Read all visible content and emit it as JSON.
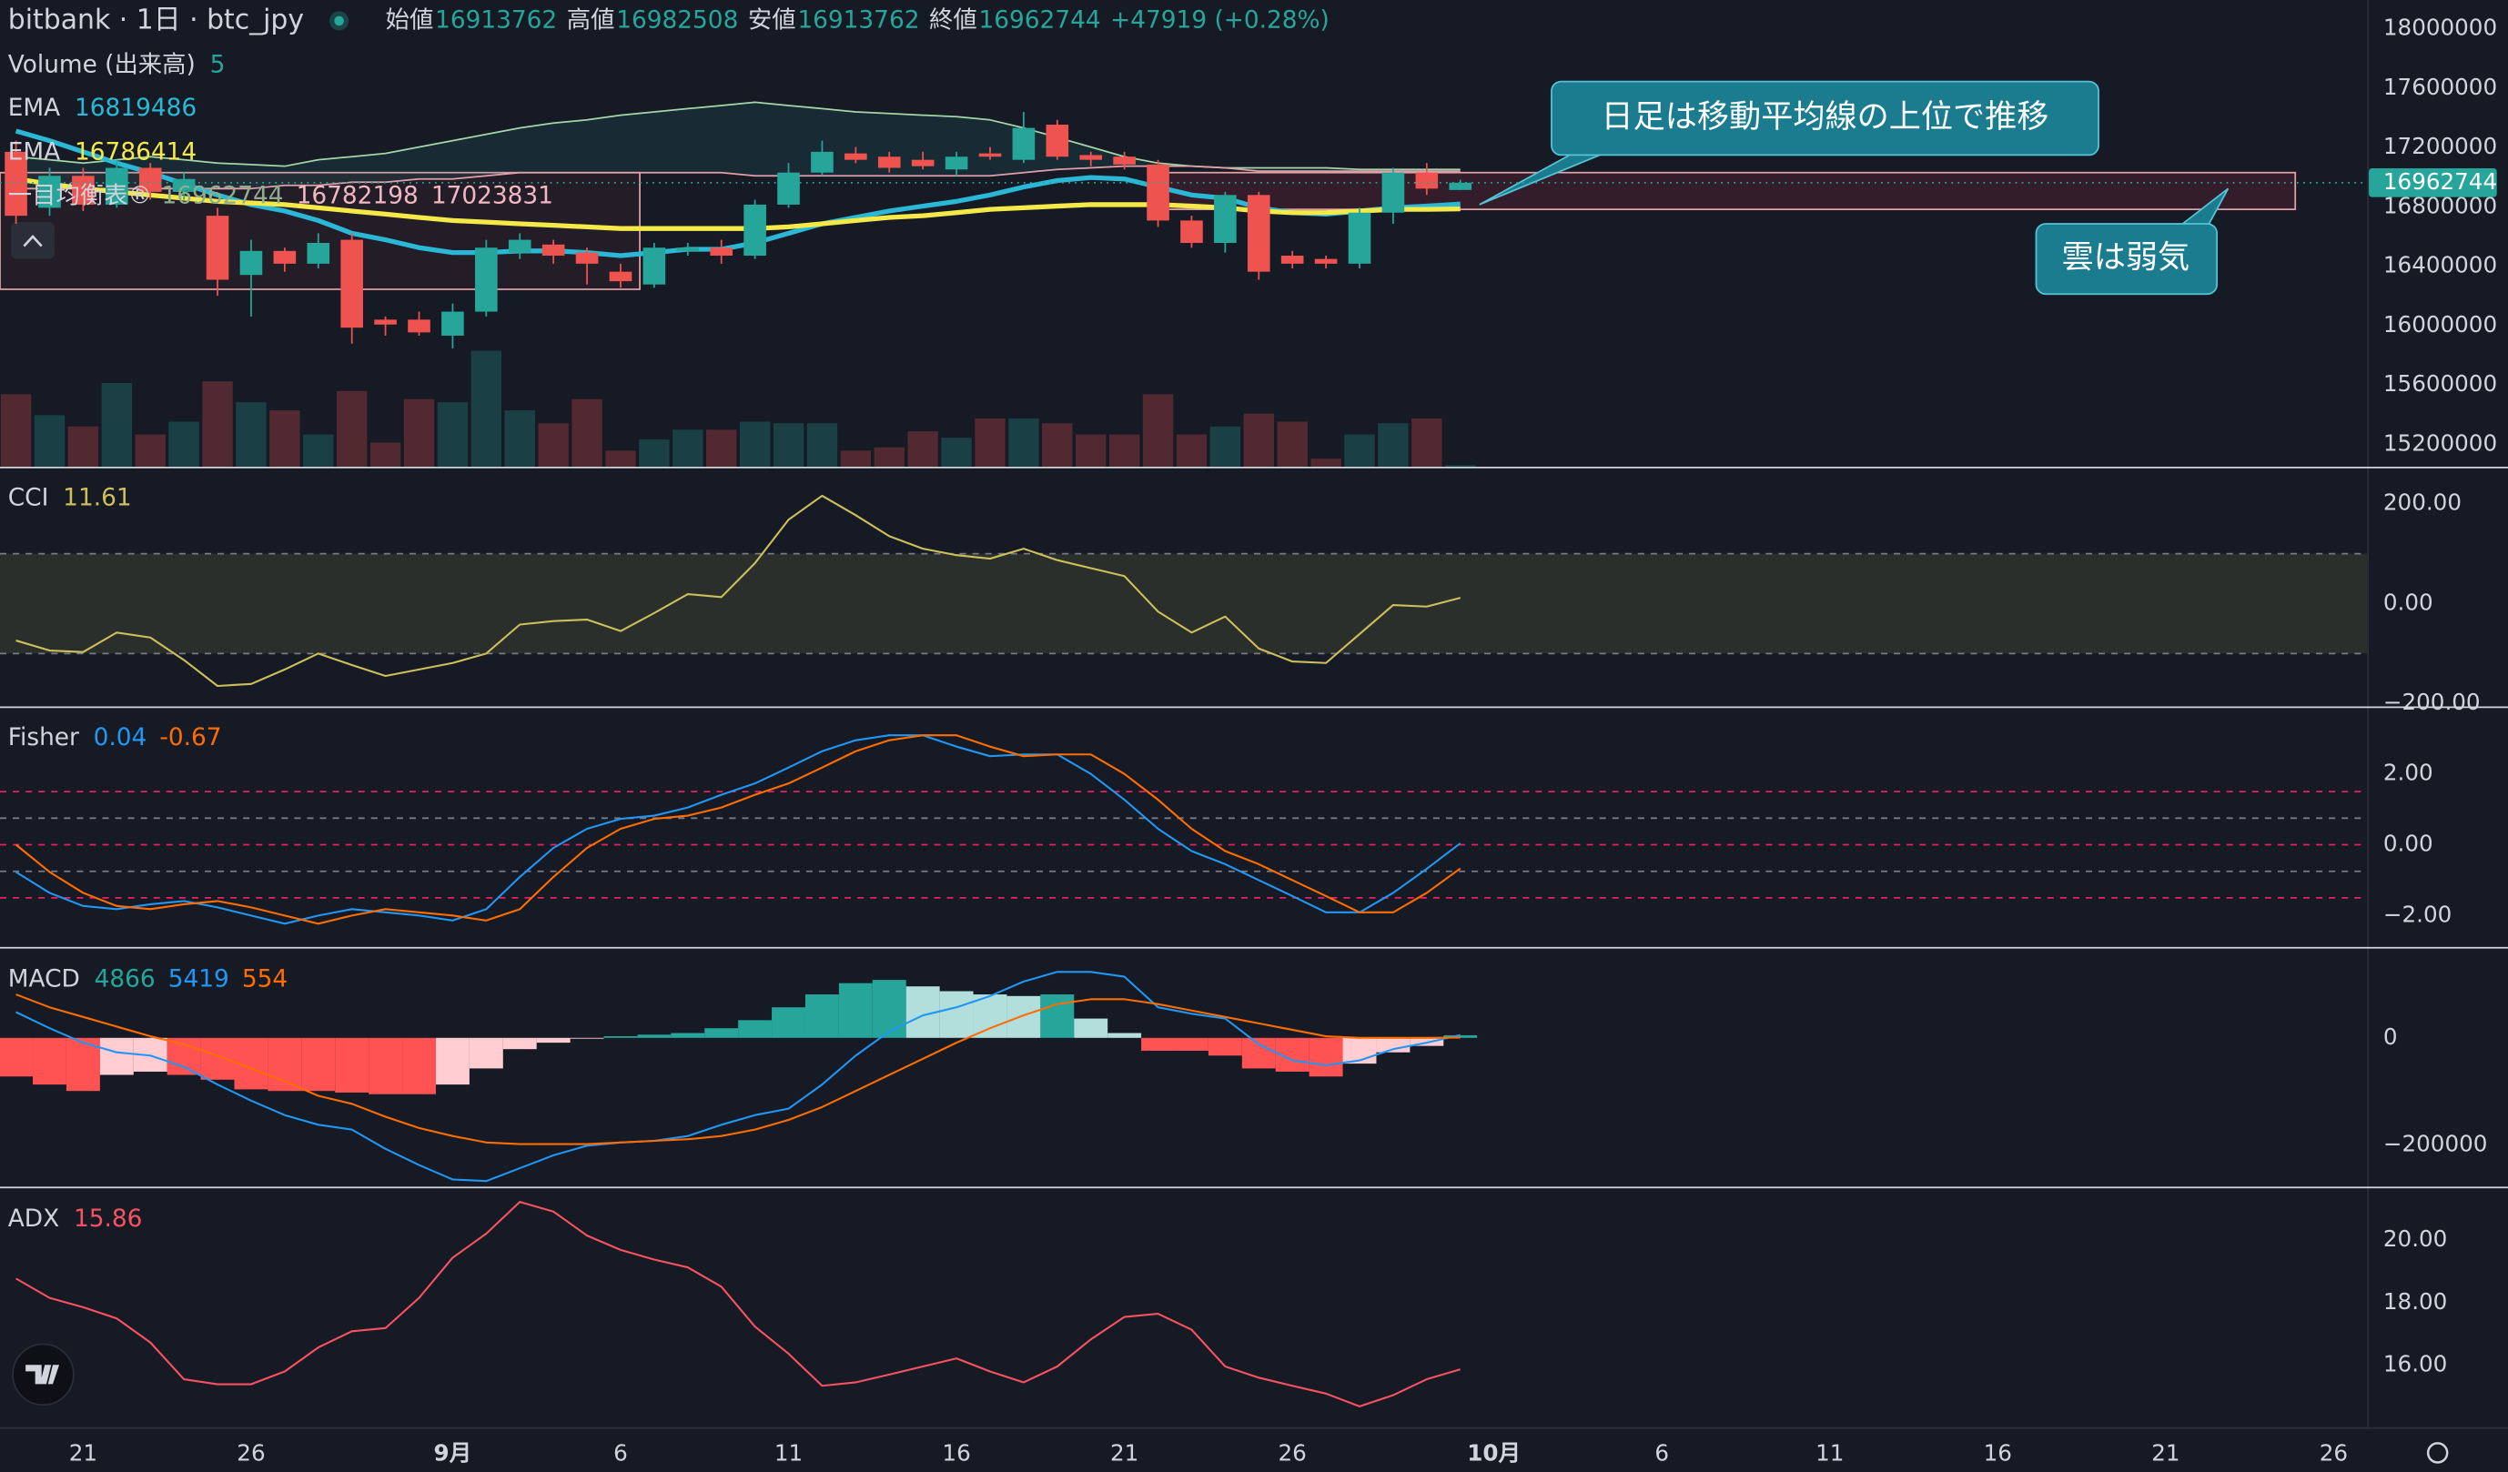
{
  "header": {
    "symbol": "bitbank · 1日 · btc_jpy",
    "open_label": "始値",
    "high_label": "高値",
    "low_label": "安値",
    "close_label": "終値",
    "change": "+47919 (+0.28%)"
  },
  "x_axis": {
    "categories": [
      null,
      null,
      "21",
      null,
      null,
      null,
      null,
      "26",
      null,
      null,
      null,
      null,
      null,
      "9月",
      null,
      null,
      null,
      null,
      "6",
      null,
      null,
      null,
      null,
      "11",
      null,
      null,
      null,
      null,
      "16",
      null,
      null,
      null,
      null,
      "21",
      null,
      null,
      null,
      null,
      "26",
      null,
      null,
      null,
      null,
      null
    ],
    "future_labels": [
      "10月",
      "6",
      "11",
      "16",
      "21",
      "26"
    ]
  },
  "annotations": [
    "日足は移動平均線の上位で推移",
    "雲は弱気"
  ],
  "chart_data": [
    {
      "type": "candlestick",
      "up_color": "#26a69a",
      "down_color": "#ef5350",
      "ylim": [
        15049000,
        18194000
      ],
      "yticks": [
        18000000,
        17600000,
        17200000,
        16800000,
        16400000,
        16000000,
        15600000,
        15200000
      ],
      "open": [
        17171000,
        16794000,
        17009000,
        16815000,
        17063000,
        16901000,
        16740000,
        16341000,
        16503000,
        16417000,
        16578000,
        16040000,
        16040000,
        15932000,
        16094000,
        16492000,
        16546000,
        16492000,
        16363000,
        16277000,
        16503000,
        16525000,
        16471000,
        16815000,
        17031000,
        17160000,
        17138000,
        17117000,
        17052000,
        17160000,
        17117000,
        17354000,
        17149000,
        17138000,
        17085000,
        16708000,
        16557000,
        16880000,
        16471000,
        16449000,
        16417000,
        16761000,
        17031000,
        16913762
      ],
      "high": [
        17246000,
        17063000,
        17063000,
        17117000,
        17095000,
        17031000,
        16794000,
        16578000,
        16525000,
        16622000,
        16622000,
        16061000,
        16094000,
        16148000,
        16578000,
        16622000,
        16578000,
        16525000,
        16417000,
        16557000,
        16557000,
        16578000,
        16848000,
        17095000,
        17246000,
        17203000,
        17171000,
        17171000,
        17171000,
        17203000,
        17440000,
        17386000,
        17171000,
        17171000,
        17117000,
        16740000,
        16901000,
        16901000,
        16503000,
        16471000,
        16794000,
        17063000,
        17095000,
        16982508
      ],
      "low": [
        16686000,
        16740000,
        16772000,
        16794000,
        16848000,
        16848000,
        16201000,
        16061000,
        16363000,
        16385000,
        15878000,
        15932000,
        15932000,
        15846000,
        16061000,
        16449000,
        16417000,
        16277000,
        16255000,
        16255000,
        16471000,
        16417000,
        16449000,
        16794000,
        17009000,
        17095000,
        17031000,
        17052000,
        17009000,
        17117000,
        17095000,
        17117000,
        17074000,
        17052000,
        16665000,
        16525000,
        16492000,
        16309000,
        16385000,
        16385000,
        16385000,
        16686000,
        16880000,
        16913762
      ],
      "close": [
        16740000,
        17009000,
        16815000,
        17063000,
        16901000,
        16988000,
        16309000,
        16503000,
        16417000,
        16557000,
        15986000,
        16007000,
        15954000,
        16094000,
        16525000,
        16578000,
        16471000,
        16417000,
        16299000,
        16525000,
        16525000,
        16471000,
        16815000,
        17031000,
        17171000,
        17117000,
        17063000,
        17074000,
        17138000,
        17138000,
        17332000,
        17138000,
        17117000,
        17085000,
        16708000,
        16557000,
        16880000,
        16363000,
        16417000,
        16417000,
        16761000,
        17031000,
        16923000,
        16962744
      ],
      "overlays": [
        {
          "name": "EMA",
          "color": "#2bb7d6",
          "values": [
            17311000,
            17246000,
            17171000,
            17095000,
            17031000,
            16955000,
            16880000,
            16815000,
            16772000,
            16708000,
            16622000,
            16578000,
            16525000,
            16492000,
            16492000,
            16503000,
            16503000,
            16492000,
            16471000,
            16492000,
            16514000,
            16514000,
            16557000,
            16622000,
            16686000,
            16729000,
            16772000,
            16805000,
            16837000,
            16880000,
            16934000,
            16977000,
            16998000,
            16988000,
            16934000,
            16880000,
            16858000,
            16794000,
            16761000,
            16751000,
            16772000,
            16794000,
            16805000,
            16819486
          ]
        },
        {
          "name": "EMA",
          "color": "#f5e94a",
          "values": [
            16988000,
            16955000,
            16923000,
            16901000,
            16880000,
            16858000,
            16837000,
            16826000,
            16815000,
            16794000,
            16772000,
            16751000,
            16729000,
            16708000,
            16697000,
            16686000,
            16676000,
            16665000,
            16654000,
            16654000,
            16654000,
            16654000,
            16654000,
            16665000,
            16686000,
            16708000,
            16729000,
            16740000,
            16761000,
            16783000,
            16794000,
            16805000,
            16815000,
            16815000,
            16815000,
            16805000,
            16794000,
            16772000,
            16761000,
            16761000,
            16772000,
            16783000,
            16783000,
            16786414
          ]
        }
      ],
      "ichimoku": {
        "name": "一目均衡表®",
        "legend_values": [
          16962744,
          16782198,
          17023831
        ],
        "span_a_color": "#a5d6a7",
        "span_b_color": "#e0a0a8",
        "cloud_color": "#26a69a",
        "span_a": [
          17138000,
          17117000,
          17095000,
          17117000,
          17138000,
          17117000,
          17095000,
          17085000,
          17074000,
          17117000,
          17138000,
          17160000,
          17203000,
          17246000,
          17289000,
          17332000,
          17365000,
          17386000,
          17418000,
          17440000,
          17462000,
          17483000,
          17505000,
          17483000,
          17462000,
          17440000,
          17429000,
          17418000,
          17408000,
          17386000,
          17332000,
          17268000,
          17203000,
          17138000,
          17095000,
          17074000,
          17063000,
          17063000,
          17063000,
          17063000,
          17052000,
          17052000,
          17052000,
          17052000
        ],
        "span_b": [
          16923000,
          16923000,
          16923000,
          16923000,
          16923000,
          16923000,
          16923000,
          16923000,
          16945000,
          16945000,
          16966000,
          16966000,
          16988000,
          16988000,
          17009000,
          17031000,
          17031000,
          17031000,
          17031000,
          17031000,
          17031000,
          17031000,
          17009000,
          17009000,
          17009000,
          17009000,
          17009000,
          17009000,
          17009000,
          17009000,
          17031000,
          17052000,
          17063000,
          17074000,
          17074000,
          17074000,
          17063000,
          17041000,
          17041000,
          17041000,
          17041000,
          17041000,
          17041000,
          17041000
        ]
      },
      "volume": {
        "name": "Volume (出来高)",
        "ylim": [
          0,
          1450
        ],
        "values": [
          225,
          160,
          125,
          260,
          100,
          140,
          265,
          200,
          175,
          100,
          235,
          75,
          210,
          200,
          360,
          175,
          135,
          210,
          50,
          85,
          115,
          115,
          140,
          135,
          135,
          50,
          60,
          110,
          90,
          150,
          150,
          135,
          100,
          100,
          225,
          100,
          125,
          165,
          140,
          25,
          100,
          135,
          150,
          5
        ]
      }
    },
    {
      "type": "line",
      "title": "CCI",
      "ylim": [
        -206,
        271
      ],
      "yticks": [
        {
          "value": 200,
          "label": "200.00"
        },
        {
          "value": 0,
          "label": "0.00"
        },
        {
          "value": -200,
          "label": "−200.00"
        }
      ],
      "bands": [
        -100,
        100
      ],
      "band_color": "#2b2f2b",
      "series": [
        {
          "color": "#cdbf5a",
          "values": [
            -74,
            -94,
            -97,
            -58,
            -68,
            -113,
            -165,
            -161,
            -132,
            -100,
            -123,
            -145,
            -132,
            -119,
            -100,
            -42,
            -35,
            -32,
            -55,
            -19,
            19,
            13,
            81,
            168,
            216,
            177,
            135,
            110,
            97,
            90,
            110,
            87,
            71,
            55,
            -16,
            -58,
            -26,
            -90,
            -116,
            -119,
            -61,
            -3,
            -6,
            11.61
          ]
        }
      ]
    },
    {
      "type": "line",
      "title": "Fisher",
      "ylim": [
        -2.91,
        3.86
      ],
      "yticks": [
        {
          "value": 2,
          "label": "2.00"
        },
        {
          "value": 0,
          "label": "0.00"
        },
        {
          "value": -2,
          "label": "−2.00"
        }
      ],
      "levels": [
        {
          "value": 1.5,
          "color": "#e91e63"
        },
        {
          "value": 0.75,
          "color": "#787b86"
        },
        {
          "value": 0,
          "color": "#e91e63"
        },
        {
          "value": -0.75,
          "color": "#787b86"
        },
        {
          "value": -1.5,
          "color": "#e91e63"
        }
      ],
      "series": [
        {
          "color": "#2196f3",
          "values": [
            -0.77,
            -1.36,
            -1.73,
            -1.82,
            -1.68,
            -1.59,
            -1.77,
            -2,
            -2.23,
            -2,
            -1.82,
            -1.91,
            -2,
            -2.14,
            -1.82,
            -0.91,
            -0.09,
            0.45,
            0.73,
            0.82,
            1.05,
            1.41,
            1.73,
            2.18,
            2.64,
            2.95,
            3.09,
            3.09,
            2.77,
            2.5,
            2.55,
            2.55,
            2,
            1.27,
            0.45,
            -0.18,
            -0.55,
            -1,
            -1.45,
            -1.91,
            -1.91,
            -1.36,
            -0.68,
            0.04
          ]
        },
        {
          "color": "#ff6d00",
          "values": [
            0,
            -0.77,
            -1.36,
            -1.73,
            -1.82,
            -1.68,
            -1.59,
            -1.77,
            -2,
            -2.23,
            -2,
            -1.82,
            -1.91,
            -2,
            -2.14,
            -1.82,
            -0.91,
            -0.09,
            0.45,
            0.73,
            0.82,
            1.05,
            1.41,
            1.73,
            2.18,
            2.64,
            2.95,
            3.09,
            3.09,
            2.77,
            2.5,
            2.55,
            2.55,
            2,
            1.27,
            0.45,
            -0.18,
            -0.55,
            -1,
            -1.45,
            -1.91,
            -1.91,
            -1.36,
            -0.67
          ]
        }
      ]
    },
    {
      "type": "combo",
      "title": "MACD",
      "ylim": [
        -279000,
        165000
      ],
      "yticks": [
        0,
        {
          "value": -200000,
          "label": "−200000"
        }
      ],
      "series": [
        {
          "style": "histogram",
          "color": "#26a69a",
          "colors": [
            "#26a69a",
            "#b2dfdb",
            "#ff5252",
            "#ffcdd2"
          ],
          "values": [
            -72000,
            -87000,
            -99000,
            -69000,
            -63000,
            -69000,
            -78000,
            -96000,
            -99000,
            -99000,
            -102000,
            -105000,
            -105000,
            -87000,
            -57000,
            -21000,
            -9000,
            -1500,
            3000,
            6000,
            9000,
            18000,
            33000,
            57000,
            81000,
            102000,
            108000,
            96000,
            87000,
            81000,
            78000,
            81000,
            36000,
            9000,
            -24000,
            -24000,
            -33000,
            -57000,
            -63000,
            -72000,
            -48000,
            -27000,
            -15000,
            4866
          ]
        },
        {
          "style": "line",
          "color": "#2196f3",
          "values": [
            48000,
            18000,
            -9000,
            -27000,
            -33000,
            -54000,
            -87000,
            -117000,
            -144000,
            -162000,
            -171000,
            -207000,
            -237000,
            -264000,
            -267000,
            -243000,
            -219000,
            -201000,
            -195000,
            -192000,
            -183000,
            -162000,
            -144000,
            -132000,
            -87000,
            -33000,
            12000,
            42000,
            57000,
            78000,
            105000,
            123000,
            123000,
            114000,
            57000,
            45000,
            36000,
            -12000,
            -42000,
            -51000,
            -42000,
            -21000,
            -9000,
            5419
          ]
        },
        {
          "style": "line",
          "color": "#ff6d00",
          "values": [
            81000,
            57000,
            39000,
            21000,
            3000,
            -12000,
            -33000,
            -57000,
            -81000,
            -108000,
            -123000,
            -147000,
            -168000,
            -183000,
            -195000,
            -198000,
            -198000,
            -198000,
            -195000,
            -192000,
            -189000,
            -183000,
            -171000,
            -153000,
            -129000,
            -99000,
            -69000,
            -39000,
            -9000,
            18000,
            42000,
            63000,
            72000,
            72000,
            63000,
            51000,
            39000,
            27000,
            15000,
            3000,
            0,
            0,
            0,
            554
          ]
        }
      ]
    },
    {
      "type": "line",
      "title": "ADX",
      "ylim": [
        14.0,
        21.64
      ],
      "yticks": [
        {
          "value": 20,
          "label": "20.00"
        },
        {
          "value": 18,
          "label": "18.00"
        },
        {
          "value": 16,
          "label": "16.00"
        }
      ],
      "series": [
        {
          "color": "#f7525f",
          "values": [
            18.77,
            18.15,
            17.85,
            17.49,
            16.72,
            15.54,
            15.38,
            15.38,
            15.79,
            16.56,
            17.08,
            17.18,
            18.15,
            19.44,
            20.21,
            21.23,
            20.92,
            20.15,
            19.69,
            19.38,
            19.13,
            18.51,
            17.23,
            16.36,
            15.33,
            15.44,
            15.69,
            15.95,
            16.21,
            15.79,
            15.44,
            15.95,
            16.82,
            17.54,
            17.64,
            17.13,
            15.95,
            15.59,
            15.33,
            15.08,
            14.67,
            15.03,
            15.54,
            15.86
          ]
        }
      ]
    }
  ]
}
